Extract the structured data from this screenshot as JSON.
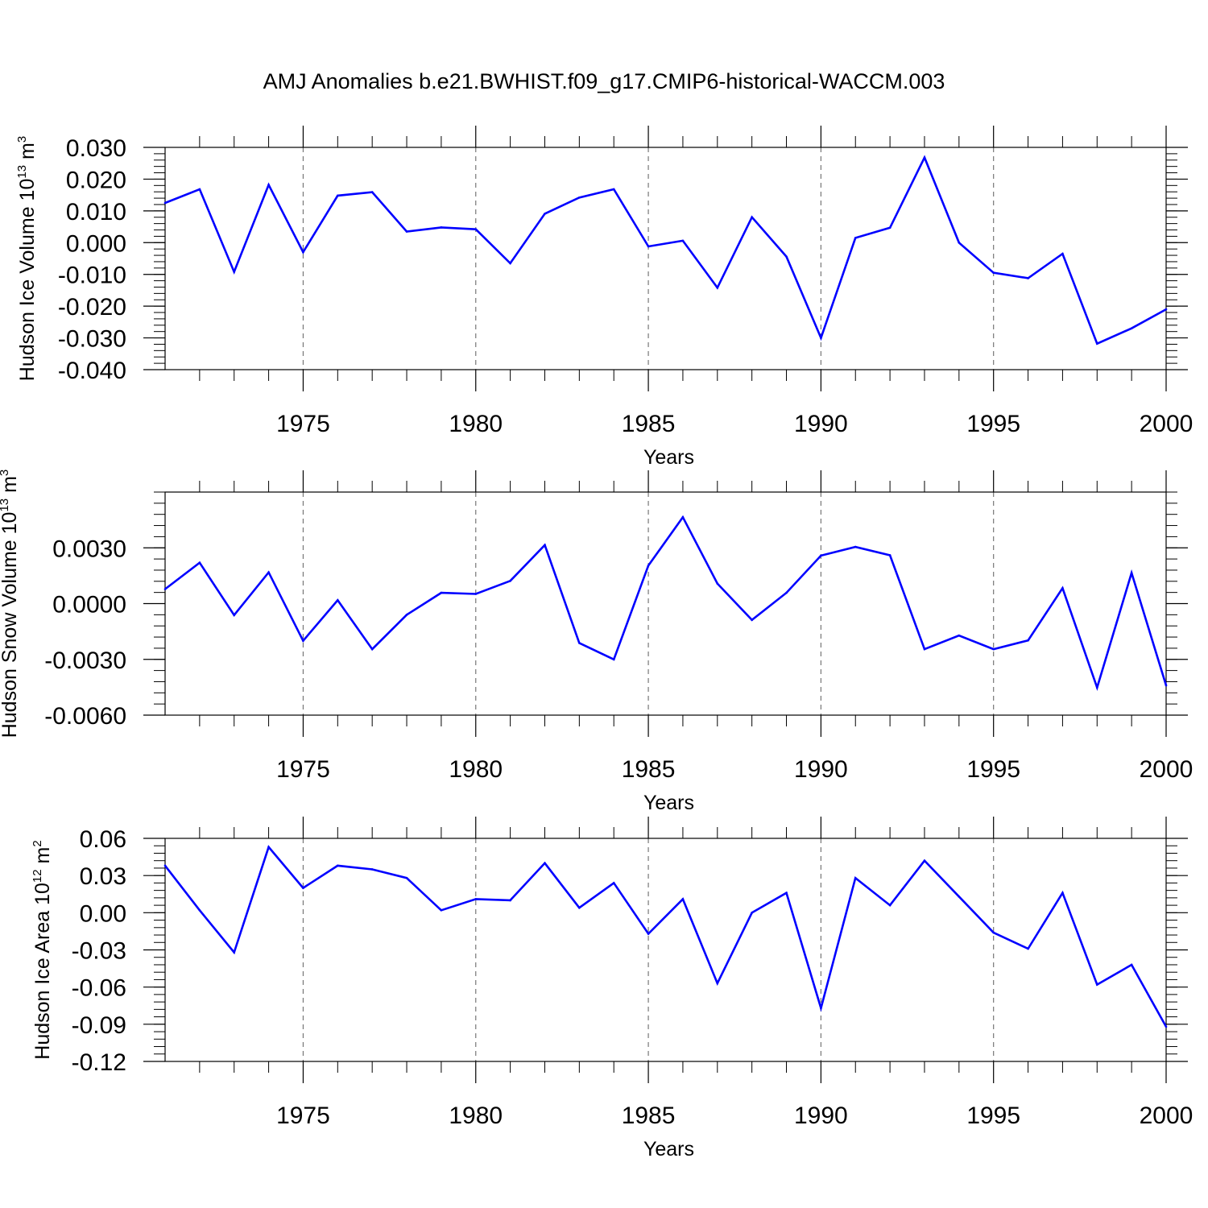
{
  "figure": {
    "title": "AMJ Anomalies b.e21.BWHIST.f09_g17.CMIP6-historical-WACCM.003"
  },
  "chart_data": [
    {
      "type": "line",
      "ylabel_main": "Hudson Ice Volume 10",
      "ylabel_exp": "13",
      "ylabel_unit": " m",
      "ylabel_unit_exp": "3",
      "xlabel": "Years",
      "color": "#0000ff",
      "xlim": [
        1971,
        2000
      ],
      "ylim": [
        -0.04,
        0.03
      ],
      "yticks": [
        "0.030",
        "0.020",
        "0.010",
        "0.000",
        "-0.010",
        "-0.020",
        "-0.030",
        "-0.040"
      ],
      "ytick_values": [
        0.03,
        0.02,
        0.01,
        0.0,
        -0.01,
        -0.02,
        -0.03,
        -0.04
      ],
      "yminor_step": 0.002,
      "xticks": [
        "1975",
        "1980",
        "1985",
        "1990",
        "1995",
        "2000"
      ],
      "xtick_values": [
        1975,
        1980,
        1985,
        1990,
        1995,
        2000
      ],
      "x": [
        1971,
        1972,
        1973,
        1974,
        1975,
        1976,
        1977,
        1978,
        1979,
        1980,
        1981,
        1982,
        1983,
        1984,
        1985,
        1986,
        1987,
        1988,
        1989,
        1990,
        1991,
        1992,
        1993,
        1994,
        1995,
        1996,
        1997,
        1998,
        1999,
        2000
      ],
      "values": [
        0.0125,
        0.0168,
        -0.0092,
        0.0182,
        -0.003,
        0.0148,
        0.0159,
        0.0035,
        0.0048,
        0.0042,
        -0.0065,
        0.0091,
        0.0142,
        0.0168,
        -0.0012,
        0.0006,
        -0.0142,
        0.008,
        -0.0044,
        -0.03,
        0.0015,
        0.0047,
        0.0268,
        0.0,
        -0.0095,
        -0.0112,
        -0.0035,
        -0.0318,
        -0.027,
        -0.021
      ]
    },
    {
      "type": "line",
      "ylabel_main": "Hudson Snow Volume 10",
      "ylabel_exp": "13",
      "ylabel_unit": " m",
      "ylabel_unit_exp": "3",
      "xlabel": "Years",
      "color": "#0000ff",
      "xlim": [
        1971,
        2000
      ],
      "ylim": [
        -0.006,
        0.006
      ],
      "yticks": [
        "0.0030",
        "0.0000",
        "-0.0030",
        "-0.0060"
      ],
      "ytick_values": [
        0.003,
        0.0,
        -0.003,
        -0.006
      ],
      "yminor_step": 0.0006,
      "xticks": [
        "1975",
        "1980",
        "1985",
        "1990",
        "1995",
        "2000"
      ],
      "xtick_values": [
        1975,
        1980,
        1985,
        1990,
        1995,
        2000
      ],
      "x": [
        1971,
        1972,
        1973,
        1974,
        1975,
        1976,
        1977,
        1978,
        1979,
        1980,
        1981,
        1982,
        1983,
        1984,
        1985,
        1986,
        1987,
        1988,
        1989,
        1990,
        1991,
        1992,
        1993,
        1994,
        1995,
        1996,
        1997,
        1998,
        1999,
        2000
      ],
      "values": [
        0.00078,
        0.0022,
        -0.00062,
        0.00168,
        -0.002,
        0.00018,
        -0.00245,
        -0.0006,
        0.00058,
        0.00052,
        0.00122,
        0.00315,
        -0.00212,
        -0.003,
        0.00205,
        0.00465,
        0.00108,
        -0.00088,
        0.00058,
        0.00258,
        0.00305,
        0.0026,
        -0.00245,
        -0.00172,
        -0.00245,
        -0.00198,
        0.00083,
        -0.00452,
        0.00165,
        -0.0044
      ]
    },
    {
      "type": "line",
      "ylabel_main": "Hudson Ice Area 10",
      "ylabel_exp": "12",
      "ylabel_unit": " m",
      "ylabel_unit_exp": "2",
      "xlabel": "Years",
      "color": "#0000ff",
      "xlim": [
        1971,
        2000
      ],
      "ylim": [
        -0.12,
        0.06
      ],
      "yticks": [
        "0.06",
        "0.03",
        "0.00",
        "-0.03",
        "-0.06",
        "-0.09",
        "-0.12"
      ],
      "ytick_values": [
        0.06,
        0.03,
        0.0,
        -0.03,
        -0.06,
        -0.09,
        -0.12
      ],
      "yminor_step": 0.006,
      "xticks": [
        "1975",
        "1980",
        "1985",
        "1990",
        "1995",
        "2000"
      ],
      "xtick_values": [
        1975,
        1980,
        1985,
        1990,
        1995,
        2000
      ],
      "x": [
        1971,
        1972,
        1973,
        1974,
        1975,
        1976,
        1977,
        1978,
        1979,
        1980,
        1981,
        1982,
        1983,
        1984,
        1985,
        1986,
        1987,
        1988,
        1989,
        1990,
        1991,
        1992,
        1993,
        1994,
        1995,
        1996,
        1997,
        1998,
        1999,
        2000
      ],
      "values": [
        0.038,
        0.002,
        -0.032,
        0.053,
        0.02,
        0.038,
        0.035,
        0.028,
        0.002,
        0.011,
        0.01,
        0.04,
        0.004,
        0.024,
        -0.017,
        0.011,
        -0.057,
        -0.0,
        0.016,
        -0.077,
        0.028,
        0.006,
        0.042,
        0.013,
        -0.016,
        -0.029,
        0.016,
        -0.058,
        -0.042,
        -0.092
      ]
    }
  ]
}
